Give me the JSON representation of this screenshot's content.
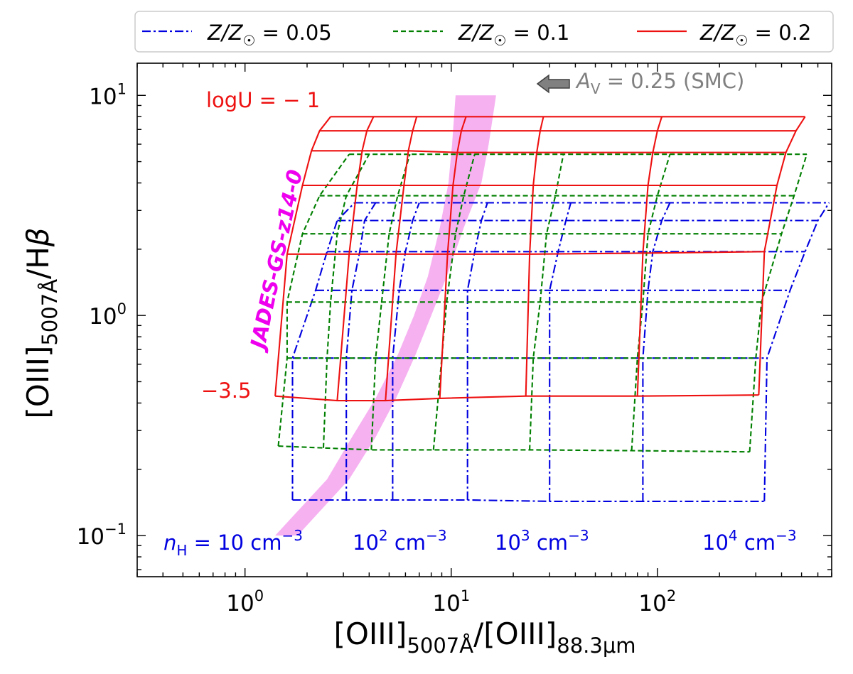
{
  "chart_data": {
    "type": "line",
    "xscale": "log",
    "yscale": "log",
    "xlim": [
      0.3,
      700
    ],
    "ylim": [
      0.065,
      14
    ],
    "xlabel": {
      "main": "[OIII]",
      "sub1": "5007Å",
      "mid": "/[OIII]",
      "sub2": "88.3μm"
    },
    "ylabel": {
      "main": "[OIII]",
      "sub": "5007Å",
      "tail": "/H",
      "greek": "β"
    },
    "xticks": [
      {
        "value": 1,
        "base": "10",
        "exp": "0"
      },
      {
        "value": 10,
        "base": "10",
        "exp": "1"
      },
      {
        "value": 100,
        "base": "10",
        "exp": "2"
      }
    ],
    "yticks": [
      {
        "value": 0.1,
        "base": "10",
        "exp": "−1"
      },
      {
        "value": 1,
        "base": "10",
        "exp": "0"
      },
      {
        "value": 10,
        "base": "10",
        "exp": "1"
      }
    ],
    "legend": {
      "placement": "top, outside",
      "entries": [
        {
          "name": "Z/Z☉ = 0.05",
          "prefix": "Z/Z",
          "suffix": " = 0.05",
          "color": "#0000e0",
          "dash": "dashdot"
        },
        {
          "name": "Z/Z☉ = 0.1",
          "prefix": "Z/Z",
          "suffix": " = 0.1",
          "color": "#007f00",
          "dash": "dashed"
        },
        {
          "name": "Z/Z☉ = 0.2",
          "prefix": "Z/Z",
          "suffix": " = 0.2",
          "color": "#ee1111",
          "dash": "solid"
        }
      ]
    },
    "series": [
      {
        "name": "Z/Z☉ = 0.05",
        "color": "#0000e0",
        "dash": "dashdot",
        "logU": [
          -3.5,
          -3.0,
          -2.5,
          -2.0,
          -1.5,
          -1.0
        ],
        "nH": [
          10,
          31.6,
          100,
          316,
          1000,
          3160,
          10000
        ],
        "rows": [
          [
            [
              1.7,
              0.145
            ],
            [
              3.1,
              0.145
            ],
            [
              5.2,
              0.145
            ],
            [
              12,
              0.145
            ],
            [
              30,
              0.143
            ],
            [
              85,
              0.143
            ],
            [
              330,
              0.143
            ]
          ],
          [
            [
              1.7,
              0.64
            ],
            [
              3.1,
              0.64
            ],
            [
              5.2,
              0.64
            ],
            [
              12,
              0.64
            ],
            [
              30,
              0.64
            ],
            [
              85,
              0.64
            ],
            [
              340,
              0.64
            ]
          ],
          [
            [
              2.2,
              1.3
            ],
            [
              3.3,
              1.3
            ],
            [
              5.6,
              1.3
            ],
            [
              12,
              1.3
            ],
            [
              30,
              1.3
            ],
            [
              90,
              1.3
            ],
            [
              440,
              1.3
            ]
          ],
          [
            [
              2.5,
              1.95
            ],
            [
              3.6,
              1.95
            ],
            [
              6,
              1.95
            ],
            [
              13,
              1.95
            ],
            [
              33,
              1.95
            ],
            [
              95,
              1.95
            ],
            [
              520,
              1.95
            ]
          ],
          [
            [
              2.8,
              2.7
            ],
            [
              3.8,
              2.7
            ],
            [
              6.5,
              2.7
            ],
            [
              14,
              2.7
            ],
            [
              36,
              2.7
            ],
            [
              105,
              2.7
            ],
            [
              600,
              2.7
            ]
          ],
          [
            [
              3.4,
              3.25
            ],
            [
              4.3,
              3.25
            ],
            [
              7,
              3.25
            ],
            [
              15,
              3.25
            ],
            [
              38,
              3.25
            ],
            [
              115,
              3.25
            ],
            [
              680,
              3.25
            ]
          ]
        ]
      },
      {
        "name": "Z/Z☉ = 0.1",
        "color": "#007f00",
        "dash": "dashed",
        "logU": [
          -3.5,
          -3.0,
          -2.5,
          -2.0,
          -1.5,
          -1.0
        ],
        "nH": [
          10,
          31.6,
          100,
          316,
          1000,
          3160,
          10000
        ],
        "rows": [
          [
            [
              1.45,
              0.255
            ],
            [
              2.4,
              0.25
            ],
            [
              4.1,
              0.245
            ],
            [
              8.2,
              0.245
            ],
            [
              24,
              0.245
            ],
            [
              75,
              0.243
            ],
            [
              280,
              0.24
            ]
          ],
          [
            [
              1.6,
              0.64
            ],
            [
              2.5,
              0.64
            ],
            [
              4.3,
              0.64
            ],
            [
              9,
              0.64
            ],
            [
              25,
              0.64
            ],
            [
              80,
              0.64
            ],
            [
              300,
              0.64
            ]
          ],
          [
            [
              1.6,
              1.15
            ],
            [
              2.6,
              1.15
            ],
            [
              4.6,
              1.15
            ],
            [
              9.5,
              1.15
            ],
            [
              27,
              1.15
            ],
            [
              85,
              1.15
            ],
            [
              320,
              1.15
            ]
          ],
          [
            [
              1.9,
              2.35
            ],
            [
              2.8,
              2.35
            ],
            [
              5,
              2.35
            ],
            [
              10.5,
              2.35
            ],
            [
              29,
              2.35
            ],
            [
              90,
              2.35
            ],
            [
              400,
              2.35
            ]
          ],
          [
            [
              2.3,
              3.5
            ],
            [
              3.1,
              3.5
            ],
            [
              5.5,
              3.5
            ],
            [
              11.5,
              3.5
            ],
            [
              32,
              3.5
            ],
            [
              100,
              3.5
            ],
            [
              460,
              3.5
            ]
          ],
          [
            [
              3.2,
              5.4
            ],
            [
              4,
              5.4
            ],
            [
              6.3,
              5.4
            ],
            [
              13,
              5.4
            ],
            [
              35,
              5.4
            ],
            [
              115,
              5.4
            ],
            [
              530,
              5.4
            ]
          ]
        ]
      },
      {
        "name": "Z/Z☉ = 0.2",
        "color": "#ee1111",
        "dash": "solid",
        "logU": [
          -3.5,
          -3.0,
          -2.5,
          -2.0,
          -1.5,
          -1.0
        ],
        "nH": [
          10,
          31.6,
          100,
          316,
          1000,
          3160,
          10000
        ],
        "rows": [
          [
            [
              1.4,
              0.43
            ],
            [
              2.8,
              0.41
            ],
            [
              4.8,
              0.41
            ],
            [
              8.8,
              0.42
            ],
            [
              23,
              0.43
            ],
            [
              80,
              0.43
            ],
            [
              310,
              0.435
            ]
          ],
          [
            [
              1.6,
              1.9
            ],
            [
              3.2,
              1.9
            ],
            [
              5.4,
              1.9
            ],
            [
              9.6,
              1.9
            ],
            [
              24,
              1.9
            ],
            [
              85,
              1.92
            ],
            [
              330,
              1.95
            ]
          ],
          [
            [
              1.9,
              3.9
            ],
            [
              3.5,
              3.9
            ],
            [
              5.9,
              3.9
            ],
            [
              10.2,
              3.9
            ],
            [
              25,
              3.9
            ],
            [
              90,
              3.9
            ],
            [
              380,
              3.9
            ]
          ],
          [
            [
              2.1,
              5.6
            ],
            [
              3.7,
              5.6
            ],
            [
              6.2,
              5.6
            ],
            [
              10.7,
              5.5
            ],
            [
              26,
              5.5
            ],
            [
              95,
              5.5
            ],
            [
              420,
              5.5
            ]
          ],
          [
            [
              2.3,
              6.9
            ],
            [
              3.9,
              6.9
            ],
            [
              6.5,
              6.9
            ],
            [
              11.2,
              6.9
            ],
            [
              27,
              6.9
            ],
            [
              100,
              6.9
            ],
            [
              470,
              6.9
            ]
          ],
          [
            [
              2.6,
              8.0
            ],
            [
              4.2,
              8.0
            ],
            [
              6.8,
              8.0
            ],
            [
              11.8,
              8.0
            ],
            [
              28,
              8.0
            ],
            [
              105,
              8.0
            ],
            [
              520,
              8.0
            ]
          ]
        ]
      }
    ],
    "band": {
      "name": "JADES-GS-z14-0",
      "color": "#f5a8f0",
      "label_color": "#ee00ee",
      "upper": [
        [
          1.8,
          0.1
        ],
        [
          3.2,
          0.18
        ],
        [
          4.3,
          0.28
        ],
        [
          5.4,
          0.42
        ],
        [
          6.7,
          0.66
        ],
        [
          8,
          1.0
        ],
        [
          9.5,
          1.5
        ],
        [
          11.5,
          2.5
        ],
        [
          14,
          4
        ],
        [
          15.2,
          6
        ],
        [
          16.5,
          10
        ]
      ],
      "lower": [
        [
          1.4,
          0.1
        ],
        [
          2.5,
          0.18
        ],
        [
          3.3,
          0.28
        ],
        [
          4.3,
          0.42
        ],
        [
          5.5,
          0.66
        ],
        [
          6.6,
          1.0
        ],
        [
          7.7,
          1.5
        ],
        [
          8.8,
          2.5
        ],
        [
          9.7,
          4
        ],
        [
          10.1,
          6
        ],
        [
          10.5,
          10
        ]
      ]
    },
    "annotations": {
      "logU_top": "logU = − 1",
      "logU_bottom": "−3.5",
      "av": {
        "pre": "A",
        "sub": "V",
        "post": " = 0.25 (SMC)",
        "color": "#808080"
      },
      "nh_prefix_n": "n",
      "nh_prefix_sub": "H",
      "nh_labels": [
        {
          "pre": " = 10 cm",
          "exp": "−3"
        },
        {
          "pre": "10",
          "sup1": "2",
          "mid": " cm",
          "exp": "−3"
        },
        {
          "pre": "10",
          "sup1": "3",
          "mid": " cm",
          "exp": "−3"
        },
        {
          "pre": "10",
          "sup1": "4",
          "mid": " cm",
          "exp": "−3"
        }
      ]
    }
  }
}
